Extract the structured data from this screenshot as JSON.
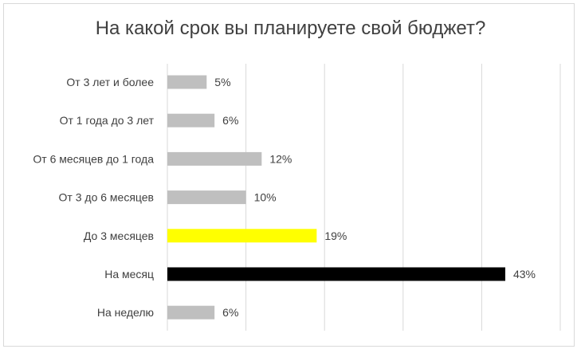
{
  "chart_data": {
    "type": "bar",
    "orientation": "horizontal",
    "title": "На какой срок вы планируете свой бюджет?",
    "categories": [
      "От 3 лет и более",
      "От 1 года до 3 лет",
      "От 6 месяцев до 1 года",
      "От 3 до 6 месяцев",
      "До 3 месяцев",
      "На месяц",
      "На неделю"
    ],
    "values": [
      5,
      6,
      12,
      10,
      19,
      43,
      6
    ],
    "value_labels": [
      "5%",
      "6%",
      "12%",
      "10%",
      "19%",
      "43%",
      "6%"
    ],
    "bar_colors": [
      "#bfbfbf",
      "#bfbfbf",
      "#bfbfbf",
      "#bfbfbf",
      "#ffff00",
      "#000000",
      "#bfbfbf"
    ],
    "xlim": [
      0,
      50
    ],
    "grid": true,
    "legend": "none"
  }
}
